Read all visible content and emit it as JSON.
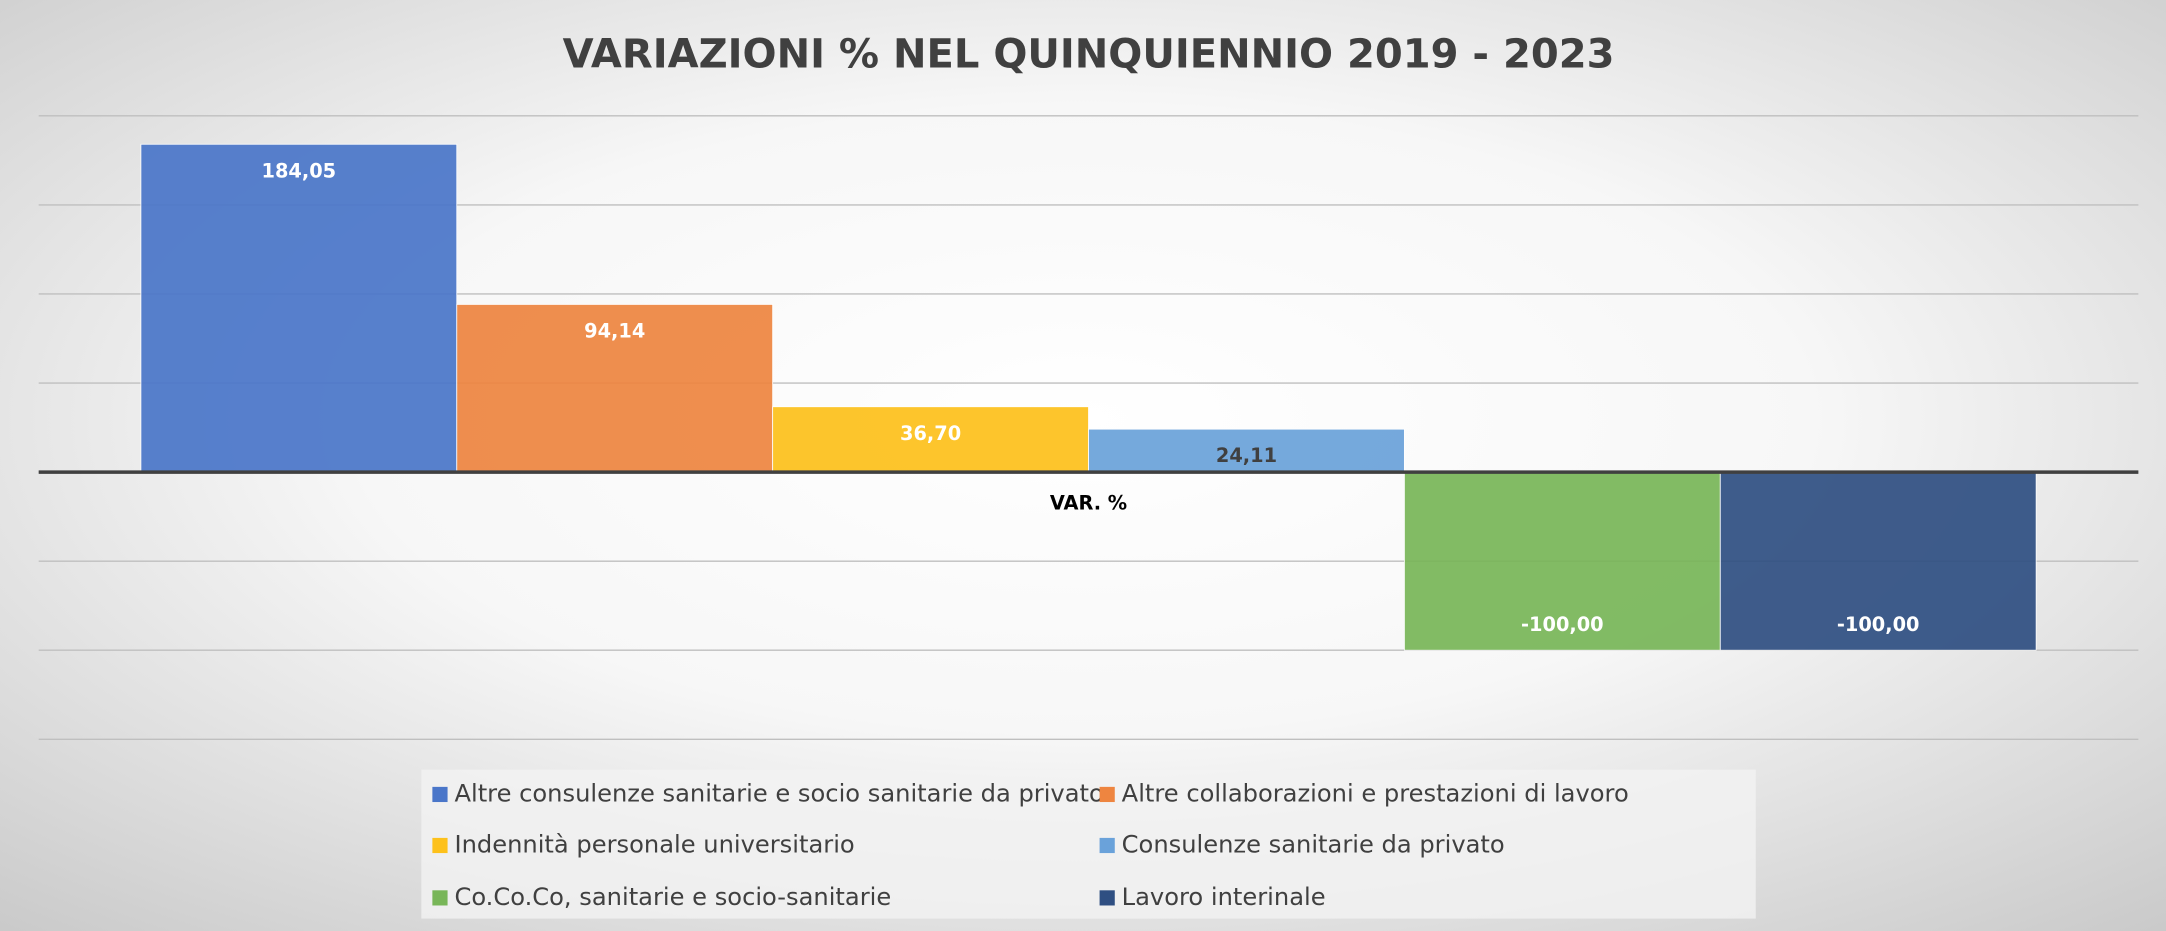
{
  "chart_data": {
    "type": "bar",
    "title": "VARIAZIONI % NEL QUINQUIENNIO 2019 - 2023",
    "categories": [
      "VAR. %"
    ],
    "series": [
      {
        "name": "Altre consulenze sanitarie e socio sanitarie da privato",
        "color": "#4a76c9",
        "values": [
          184.05
        ],
        "value_labels": [
          "184,05"
        ],
        "label_color": "#ffffff"
      },
      {
        "name": "Altre collaborazioni e prestazioni di lavoro",
        "color": "#ee8540",
        "values": [
          94.14
        ],
        "value_labels": [
          "94,14"
        ],
        "label_color": "#ffffff"
      },
      {
        "name": "Indennità personale universitario",
        "color": "#fdc11b",
        "values": [
          36.7
        ],
        "value_labels": [
          "36,70"
        ],
        "label_color": "#ffffff"
      },
      {
        "name": "Consulenze sanitarie da privato",
        "color": "#6aa2da",
        "values": [
          24.11
        ],
        "value_labels": [
          "24,11"
        ],
        "label_color": "#404040"
      },
      {
        "name": "Co.Co.Co, sanitarie e socio-sanitarie",
        "color": "#78b658",
        "values": [
          -100.0
        ],
        "value_labels": [
          "-100,00"
        ],
        "label_color": "#ffffff"
      },
      {
        "name": "Lavoro interinale",
        "color": "#2f4f82",
        "values": [
          -100.0
        ],
        "value_labels": [
          "-100,00"
        ],
        "label_color": "#ffffff"
      }
    ],
    "ylim": [
      -150,
      200
    ],
    "yticks": [
      -150,
      -100,
      -50,
      0,
      50,
      100,
      150,
      200
    ],
    "grid": true,
    "legend": "bottom"
  }
}
